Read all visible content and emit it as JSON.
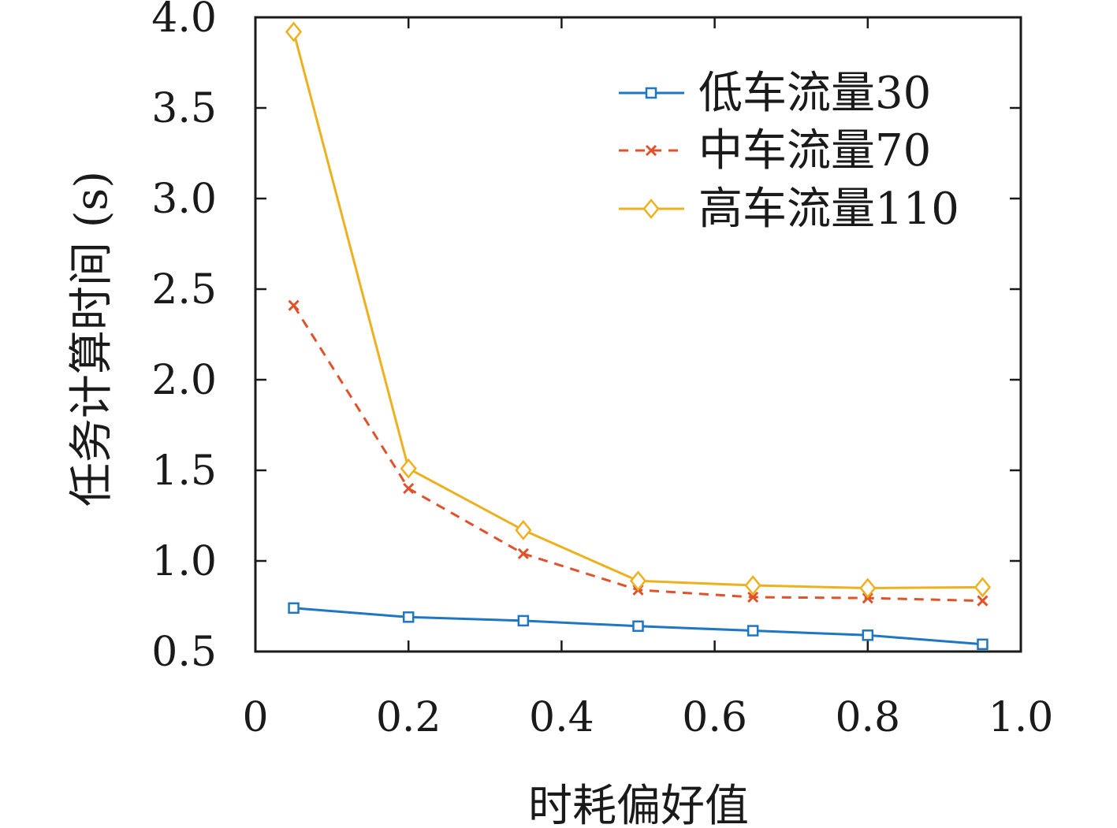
{
  "chart_data": {
    "type": "line",
    "title": "",
    "xlabel": "时耗偏好值",
    "ylabel": "任务计算时间 (s)",
    "xlim": [
      0,
      1.0
    ],
    "ylim": [
      0.5,
      4.0
    ],
    "x_ticks": [
      "0",
      "0.2",
      "0.4",
      "0.6",
      "0.8",
      "1.0"
    ],
    "y_ticks": [
      "0.5",
      "1.0",
      "1.5",
      "2.0",
      "2.5",
      "3.0",
      "3.5",
      "4.0"
    ],
    "x": [
      0.05,
      0.2,
      0.35,
      0.5,
      0.65,
      0.8,
      0.95
    ],
    "grid": false,
    "legend_position": "top-right",
    "series": [
      {
        "name": "低车流量30",
        "values": [
          0.74,
          0.69,
          0.67,
          0.64,
          0.615,
          0.59,
          0.54
        ],
        "color": "#1f77c4",
        "marker": "square",
        "dash": "solid"
      },
      {
        "name": "中车流量70",
        "values": [
          2.41,
          1.4,
          1.04,
          0.84,
          0.8,
          0.795,
          0.78
        ],
        "color": "#e0522a",
        "marker": "x",
        "dash": "dashed"
      },
      {
        "name": "高车流量110",
        "values": [
          3.92,
          1.51,
          1.17,
          0.89,
          0.865,
          0.85,
          0.855
        ],
        "color": "#edb120",
        "marker": "diamond",
        "dash": "solid"
      }
    ]
  }
}
